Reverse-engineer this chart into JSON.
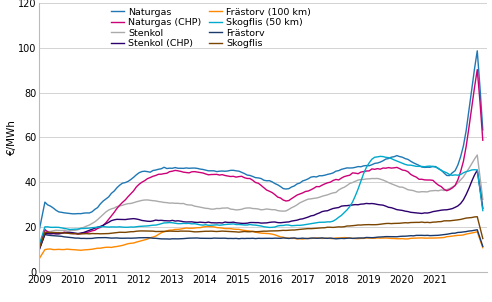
{
  "ylabel": "€/MWh",
  "ylim": [
    0,
    120
  ],
  "yticks": [
    0,
    20,
    40,
    60,
    80,
    100,
    120
  ],
  "xlim": [
    2009.0,
    2022.58
  ],
  "xticks": [
    2009,
    2010,
    2011,
    2012,
    2013,
    2014,
    2015,
    2016,
    2017,
    2018,
    2019,
    2020,
    2021
  ],
  "series": {
    "Naturgas": {
      "color": "#1f78b4",
      "linewidth": 1.0
    },
    "Stenkol": {
      "color": "#aaaaaa",
      "linewidth": 1.0
    },
    "Frästorv (100 km)": {
      "color": "#ff8800",
      "linewidth": 1.0
    },
    "Frästorv": {
      "color": "#1a3a6b",
      "linewidth": 1.0
    },
    "Naturgas (CHP)": {
      "color": "#cc0077",
      "linewidth": 1.0
    },
    "Stenkol (CHP)": {
      "color": "#2d006e",
      "linewidth": 1.0
    },
    "Skogflis (50 km)": {
      "color": "#00aacc",
      "linewidth": 1.0
    },
    "Skogflis": {
      "color": "#7a4500",
      "linewidth": 1.0
    }
  },
  "legend_ncol": 2,
  "legend_fontsize": 6.8,
  "background_color": "#ffffff",
  "grid_color": "#cccccc",
  "legend_order": [
    "Naturgas",
    "Naturgas (CHP)",
    "Stenkol",
    "Stenkol (CHP)",
    "Frästorv (100 km)",
    "Skogflis (50 km)",
    "Frästorv",
    "Skogflis"
  ]
}
